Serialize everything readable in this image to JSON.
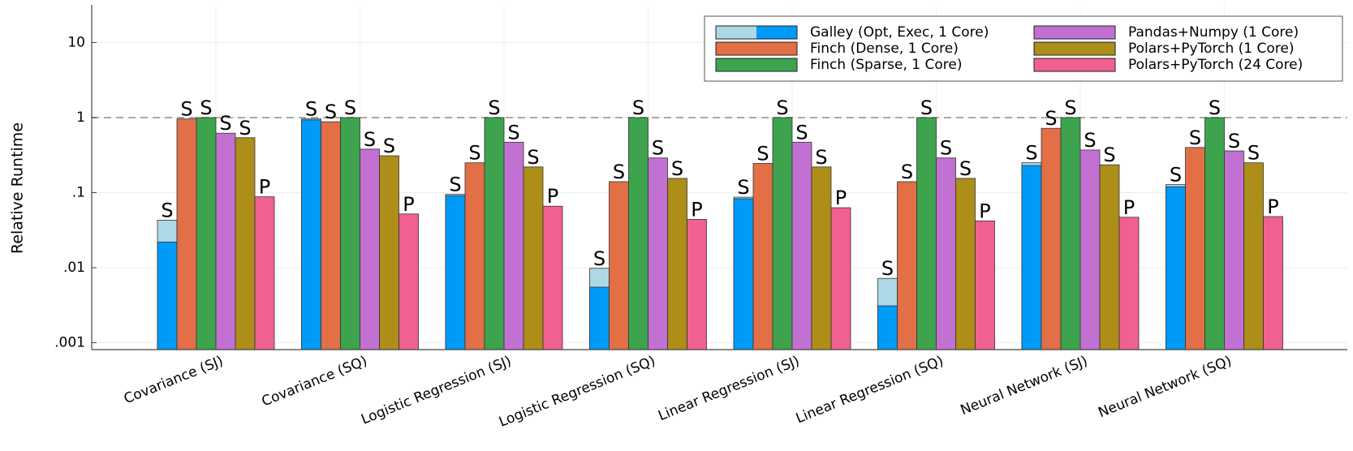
{
  "chart_data": {
    "type": "bar",
    "title": "",
    "xlabel": "",
    "ylabel": "Relative Runtime",
    "yscale": "log",
    "ylim": [
      0.00075,
      30
    ],
    "yticks": [
      {
        "value": 0.001,
        "label": ".001"
      },
      {
        "value": 0.01,
        "label": ".01"
      },
      {
        "value": 0.1,
        "label": ".1"
      },
      {
        "value": 1,
        "label": "1"
      },
      {
        "value": 10,
        "label": "10"
      }
    ],
    "reference_line": 1,
    "grid": true,
    "legend_position": "top-right",
    "categories": [
      "Covariance (SJ)",
      "Covariance (SQ)",
      "Logistic Regression (SJ)",
      "Logistic Regression (SQ)",
      "Linear Regression (SJ)",
      "Linear Regression (SQ)",
      "Neural Network (SJ)",
      "Neural Network (SQ)"
    ],
    "series": [
      {
        "name": "Galley (Opt, Exec, 1 Core)",
        "color": "#009AF9",
        "opt_color": "#ADD8E6",
        "values": [
          0.022,
          0.93,
          0.091,
          0.0055,
          0.083,
          0.0031,
          0.23,
          0.12
        ],
        "totals": [
          0.043,
          0.96,
          0.095,
          0.0098,
          0.087,
          0.0072,
          0.25,
          0.128
        ],
        "labels": [
          "S",
          "S",
          "S",
          "S",
          "S",
          "S",
          "S",
          "S"
        ]
      },
      {
        "name": "Finch (Dense, 1 Core)",
        "color": "#E26F46",
        "values": [
          0.96,
          0.88,
          0.25,
          0.14,
          0.245,
          0.14,
          0.72,
          0.4
        ],
        "labels": [
          "S",
          "S",
          "S",
          "S",
          "S",
          "S",
          "S",
          "S"
        ]
      },
      {
        "name": "Finch (Sparse, 1 Core)",
        "color": "#3DA44D",
        "values": [
          1,
          1,
          1,
          1,
          1,
          1,
          1,
          1
        ],
        "labels": [
          "S",
          "S",
          "S",
          "S",
          "S",
          "S",
          "S",
          "S"
        ]
      },
      {
        "name": "Pandas+Numpy (1 Core)",
        "color": "#C271D2",
        "values": [
          0.62,
          0.38,
          0.47,
          0.29,
          0.47,
          0.29,
          0.37,
          0.36
        ],
        "labels": [
          "S",
          "S",
          "S",
          "S",
          "S",
          "S",
          "S",
          "S"
        ]
      },
      {
        "name": "Polars+PyTorch (1 Core)",
        "color": "#AC8E18",
        "values": [
          0.54,
          0.31,
          0.22,
          0.155,
          0.22,
          0.155,
          0.235,
          0.25
        ],
        "labels": [
          "S",
          "S",
          "S",
          "S",
          "S",
          "S",
          "S",
          "S"
        ]
      },
      {
        "name": "Polars+PyTorch (24 Core)",
        "color": "#F06090",
        "values": [
          0.088,
          0.052,
          0.066,
          0.044,
          0.063,
          0.042,
          0.047,
          0.048
        ],
        "labels": [
          "P",
          "P",
          "P",
          "P",
          "P",
          "P",
          "P",
          "P"
        ]
      }
    ]
  }
}
